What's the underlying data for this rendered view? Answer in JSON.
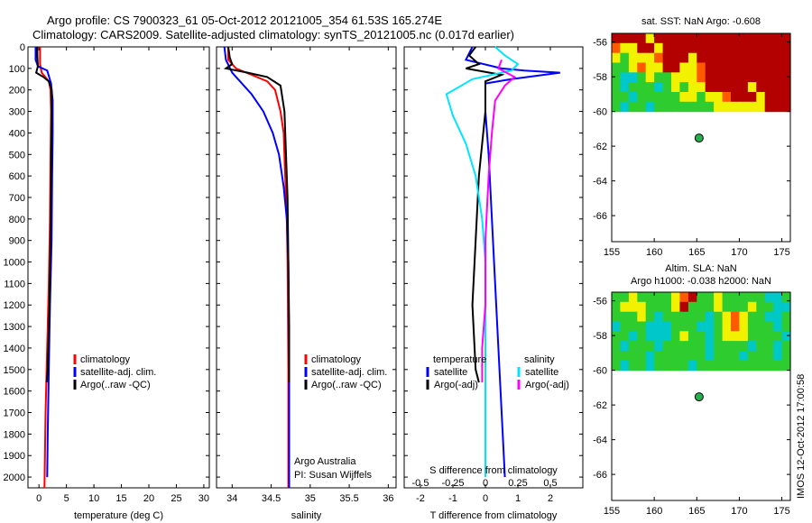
{
  "header": {
    "line1": "Argo profile: CS 7900323_61 05-Oct-2012 20121005_354 61.53S 165.274E",
    "line2": "Climatology: CARS2009. Satellite-adjusted climatology: synTS_20121005.nc (0.017d earlier)"
  },
  "stamp": "IMOS 12-Oct-2012 17:00:58",
  "colors": {
    "climatology": "#ff0000",
    "satellite": "#0000ff",
    "argo": "#000000",
    "cyan": "#00e5ff",
    "magenta": "#ff00ff"
  },
  "chart_data": [
    {
      "type": "line",
      "xlabel": "temperature (deg C)",
      "ylabel": "",
      "xlim": [
        -2,
        31
      ],
      "ylim": [
        2050,
        0
      ],
      "xticks": [
        0,
        5,
        10,
        15,
        20,
        25,
        30
      ],
      "yticks": [
        0,
        100,
        200,
        300,
        400,
        500,
        600,
        700,
        800,
        900,
        1000,
        1100,
        1200,
        1300,
        1400,
        1500,
        1600,
        1700,
        1800,
        1900,
        2000
      ],
      "legend": [
        "climatology",
        "satellite-adj. clim.",
        "Argo(..raw -QC)"
      ],
      "series": [
        {
          "name": "climatology",
          "color": "#ff0000",
          "points": [
            [
              0.2,
              0
            ],
            [
              0.2,
              80
            ],
            [
              0.5,
              120
            ],
            [
              1.8,
              160
            ],
            [
              2.1,
              200
            ],
            [
              2.2,
              300
            ],
            [
              2.1,
              500
            ],
            [
              2.0,
              800
            ],
            [
              1.8,
              1100
            ],
            [
              1.5,
              1400
            ],
            [
              1.2,
              1700
            ],
            [
              1.0,
              2050
            ]
          ]
        },
        {
          "name": "satellite-adj. clim.",
          "color": "#0000ff",
          "points": [
            [
              -0.6,
              0
            ],
            [
              -0.6,
              60
            ],
            [
              -0.2,
              90
            ],
            [
              1.5,
              110
            ],
            [
              2.2,
              170
            ],
            [
              2.5,
              250
            ],
            [
              2.5,
              400
            ],
            [
              2.4,
              600
            ],
            [
              2.3,
              900
            ],
            [
              2.0,
              1200
            ],
            [
              1.8,
              1500
            ],
            [
              1.6,
              1800
            ],
            [
              1.5,
              2000
            ]
          ]
        },
        {
          "name": "Argo(..raw -QC)",
          "color": "#000000",
          "points": [
            [
              -0.3,
              0
            ],
            [
              -0.3,
              40
            ],
            [
              -0.2,
              90
            ],
            [
              -0.5,
              120
            ],
            [
              0.8,
              140
            ],
            [
              1.8,
              160
            ],
            [
              2.3,
              200
            ],
            [
              2.3,
              350
            ],
            [
              2.2,
              600
            ],
            [
              2.1,
              900
            ],
            [
              1.9,
              1200
            ],
            [
              1.6,
              1500
            ],
            [
              1.4,
              1560
            ]
          ]
        }
      ]
    },
    {
      "type": "line",
      "xlabel": "salinity",
      "ylabel": "",
      "xlim": [
        33.8,
        36.1
      ],
      "ylim": [
        2050,
        0
      ],
      "xticks": [
        34,
        34.5,
        35,
        35.5,
        36
      ],
      "legend": [
        "climatology",
        "satellite-adj. clim.",
        "Argo(..raw -QC)"
      ],
      "notes": [
        "Argo Australia",
        "PI: Susan Wijffels"
      ],
      "series": [
        {
          "name": "climatology",
          "color": "#ff0000",
          "points": [
            [
              33.95,
              0
            ],
            [
              33.95,
              60
            ],
            [
              34.05,
              100
            ],
            [
              34.25,
              130
            ],
            [
              34.45,
              160
            ],
            [
              34.55,
              200
            ],
            [
              34.62,
              300
            ],
            [
              34.66,
              400
            ],
            [
              34.68,
              600
            ],
            [
              34.7,
              800
            ],
            [
              34.71,
              1000
            ],
            [
              34.72,
              1500
            ],
            [
              34.72,
              2050
            ]
          ]
        },
        {
          "name": "satellite-adj. clim.",
          "color": "#0000ff",
          "points": [
            [
              33.9,
              0
            ],
            [
              33.92,
              60
            ],
            [
              34.0,
              120
            ],
            [
              34.1,
              160
            ],
            [
              34.25,
              220
            ],
            [
              34.4,
              300
            ],
            [
              34.52,
              400
            ],
            [
              34.6,
              500
            ],
            [
              34.66,
              650
            ],
            [
              34.7,
              800
            ],
            [
              34.72,
              1000
            ],
            [
              34.73,
              1500
            ],
            [
              34.73,
              2050
            ]
          ]
        },
        {
          "name": "Argo(..raw -QC)",
          "color": "#000000",
          "points": [
            [
              33.95,
              0
            ],
            [
              33.97,
              50
            ],
            [
              34.0,
              80
            ],
            [
              33.92,
              100
            ],
            [
              34.2,
              120
            ],
            [
              34.45,
              140
            ],
            [
              34.62,
              180
            ],
            [
              34.67,
              300
            ],
            [
              34.69,
              500
            ],
            [
              34.71,
              700
            ],
            [
              34.72,
              1000
            ],
            [
              34.73,
              1300
            ],
            [
              34.73,
              1560
            ]
          ]
        }
      ]
    },
    {
      "type": "line",
      "xlabel": "T difference from climatology",
      "xlabel2": "S difference from climatology",
      "xlim": [
        -2.5,
        3.0
      ],
      "ylim": [
        2050,
        0
      ],
      "xticks": [
        -2,
        -1,
        0,
        1,
        2
      ],
      "xticks2": [
        "-0.5",
        "-0.25",
        "0",
        "0.25",
        "0.5"
      ],
      "xticks2_values": [
        -2,
        -1,
        0,
        1,
        2
      ],
      "legend_left_title": "temperature",
      "legend_right_title": "salinity",
      "legend": [
        "satellite",
        "Argo(-adj)",
        "satellite",
        "Argo(-adj)"
      ],
      "series": [
        {
          "name": "satellite",
          "color": "#0000ff",
          "points": [
            [
              -0.4,
              0
            ],
            [
              -0.6,
              60
            ],
            [
              0.5,
              100
            ],
            [
              1.2,
              110
            ],
            [
              2.3,
              120
            ],
            [
              0.8,
              150
            ],
            [
              0.0,
              170
            ],
            [
              0.0,
              300
            ],
            [
              0.1,
              500
            ],
            [
              0.2,
              800
            ],
            [
              0.3,
              1100
            ],
            [
              0.4,
              1400
            ],
            [
              0.5,
              1700
            ],
            [
              0.6,
              2000
            ]
          ]
        },
        {
          "name": "Argo(-adj)",
          "color": "#000000",
          "points": [
            [
              -0.3,
              0
            ],
            [
              -0.5,
              40
            ],
            [
              -0.2,
              80
            ],
            [
              -0.6,
              100
            ],
            [
              0.5,
              130
            ],
            [
              0.0,
              160
            ],
            [
              0.0,
              300
            ],
            [
              -0.2,
              600
            ],
            [
              -0.3,
              900
            ],
            [
              -0.4,
              1200
            ],
            [
              -0.3,
              1500
            ],
            [
              -0.2,
              1560
            ]
          ]
        },
        {
          "name": "satellite",
          "color": "#00e5ff",
          "points": [
            [
              0.3,
              0
            ],
            [
              0.6,
              40
            ],
            [
              1.0,
              80
            ],
            [
              0.8,
              110
            ],
            [
              -0.4,
              150
            ],
            [
              -1.2,
              220
            ],
            [
              -1.0,
              320
            ],
            [
              -0.6,
              450
            ],
            [
              -0.3,
              600
            ],
            [
              -0.1,
              800
            ],
            [
              0.0,
              1000
            ],
            [
              0.0,
              1500
            ],
            [
              0.0,
              2000
            ]
          ]
        },
        {
          "name": "Argo(-adj)",
          "color": "#ff00ff",
          "points": [
            [
              0.5,
              60
            ],
            [
              0.4,
              100
            ],
            [
              0.9,
              140
            ],
            [
              0.6,
              180
            ],
            [
              0.3,
              250
            ],
            [
              0.2,
              400
            ],
            [
              0.1,
              600
            ],
            [
              0.0,
              900
            ],
            [
              0.0,
              1200
            ],
            [
              -0.1,
              1400
            ],
            [
              -0.1,
              1560
            ]
          ]
        }
      ]
    },
    {
      "type": "heatmap",
      "title": "sat. SST: NaN Argo: -0.608",
      "xlim": [
        155,
        176
      ],
      "ylim": [
        -67.5,
        -55.5
      ],
      "xticks": [
        155,
        160,
        165,
        170,
        175
      ],
      "yticks": [
        -56,
        -58,
        -60,
        -62,
        -64,
        -66
      ],
      "data_lat_range": [
        -60,
        -55.5
      ],
      "float_position": [
        165.274,
        -61.53
      ],
      "grid": [
        "rrrryrrrrrrrrrrrrrrrr",
        "oyyrryrrrrrrrrrrrrrrr",
        "ygyyyorrryrrrrrrrrrrr",
        "ggyoyyrryyorrrrrrrrrr",
        "gccgyggyyyorrrrrrrrrr",
        "gcgggcgygyyrrrrryrrrr",
        "ggcgggggyygyyorrryrrr",
        "gcggcgggggggyyyyyyrrr"
      ]
    },
    {
      "type": "heatmap",
      "title": "Altim. SLA: NaN",
      "subtitle": "Argo h1000: -0.038 h2000: NaN",
      "xlim": [
        155,
        176
      ],
      "ylim": [
        -67.5,
        -55.5
      ],
      "xticks": [
        155,
        160,
        165,
        170,
        175
      ],
      "yticks": [
        -56,
        -58,
        -60,
        -62,
        -64,
        -66
      ],
      "data_lat_range": [
        -60,
        -55.5
      ],
      "float_position": [
        165.274,
        -61.53
      ],
      "grid": [
        "ggyggggyorggygggggccg",
        "gyyygggyrgggygggyggcc",
        "gggygcgggggcgyoyggccg",
        "cgggcccgggccgyoygggcg",
        "ggcgcccgyggcgyyyggggc",
        "gcgggcgggggcggggcggcg",
        "ggggcggggggcgggcgggcg",
        "gcggcggggcggggggggggg"
      ]
    }
  ]
}
